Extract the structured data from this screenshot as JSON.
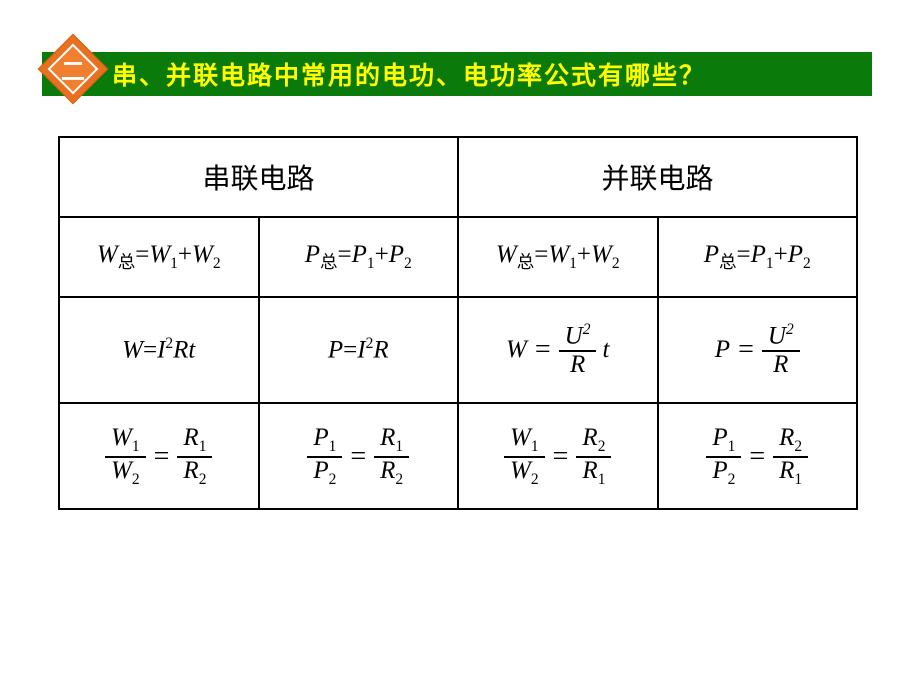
{
  "colors": {
    "header_band": "#0a7a0a",
    "header_text": "#ffff00",
    "diamond_outer": "#e87020",
    "diamond_inner": "#f08030",
    "diamond_border": "#ffffff",
    "table_border": "#000000",
    "text": "#000000",
    "background": "#ffffff",
    "watermark": "#c8c8c8"
  },
  "header": {
    "badge": "二",
    "title": "串、并联电路中常用的电功、电功率公式有哪些？"
  },
  "table": {
    "headers": {
      "series": "串联电路",
      "parallel": "并联电路"
    },
    "subscript_total": "总",
    "rows": [
      {
        "series": {
          "W": {
            "lhs_symbol": "W",
            "lhs_sub": "总",
            "rhs": [
              {
                "sym": "W",
                "sub": "1"
              },
              {
                "sym": "W",
                "sub": "2"
              }
            ]
          },
          "P": {
            "lhs_symbol": "P",
            "lhs_sub": "总",
            "rhs": [
              {
                "sym": "P",
                "sub": "1"
              },
              {
                "sym": "P",
                "sub": "2"
              }
            ]
          }
        },
        "parallel": {
          "W": {
            "lhs_symbol": "W",
            "lhs_sub": "总",
            "rhs": [
              {
                "sym": "W",
                "sub": "1"
              },
              {
                "sym": "W",
                "sub": "2"
              }
            ]
          },
          "P": {
            "lhs_symbol": "P",
            "lhs_sub": "总",
            "rhs": [
              {
                "sym": "P",
                "sub": "1"
              },
              {
                "sym": "P",
                "sub": "2"
              }
            ]
          }
        }
      },
      {
        "series": {
          "W": {
            "text_lhs": "W",
            "text_rhs": "I²Rt",
            "display": "W=I2Rt"
          },
          "P": {
            "text_lhs": "P",
            "text_rhs": "I²R",
            "display": "P=I2R"
          }
        },
        "parallel": {
          "W": {
            "lhs": "W",
            "num": "U",
            "num_sup": "2",
            "den": "R",
            "tail": "t"
          },
          "P": {
            "lhs": "P",
            "num": "U",
            "num_sup": "2",
            "den": "R"
          }
        }
      },
      {
        "series": {
          "W": {
            "left_num": "W",
            "left_num_sub": "1",
            "left_den": "W",
            "left_den_sub": "2",
            "right_num": "R",
            "right_num_sub": "1",
            "right_den": "R",
            "right_den_sub": "2"
          },
          "P": {
            "left_num": "P",
            "left_num_sub": "1",
            "left_den": "P",
            "left_den_sub": "2",
            "right_num": "R",
            "right_num_sub": "1",
            "right_den": "R",
            "right_den_sub": "2"
          }
        },
        "parallel": {
          "W": {
            "left_num": "W",
            "left_num_sub": "1",
            "left_den": "W",
            "left_den_sub": "2",
            "right_num": "R",
            "right_num_sub": "2",
            "right_den": "R",
            "right_den_sub": "1"
          },
          "P": {
            "left_num": "P",
            "left_num_sub": "1",
            "left_den": "P",
            "left_den_sub": "2",
            "right_num": "R",
            "right_num_sub": "2",
            "right_den": "R",
            "right_den_sub": "1"
          }
        }
      }
    ]
  },
  "watermark": ""
}
